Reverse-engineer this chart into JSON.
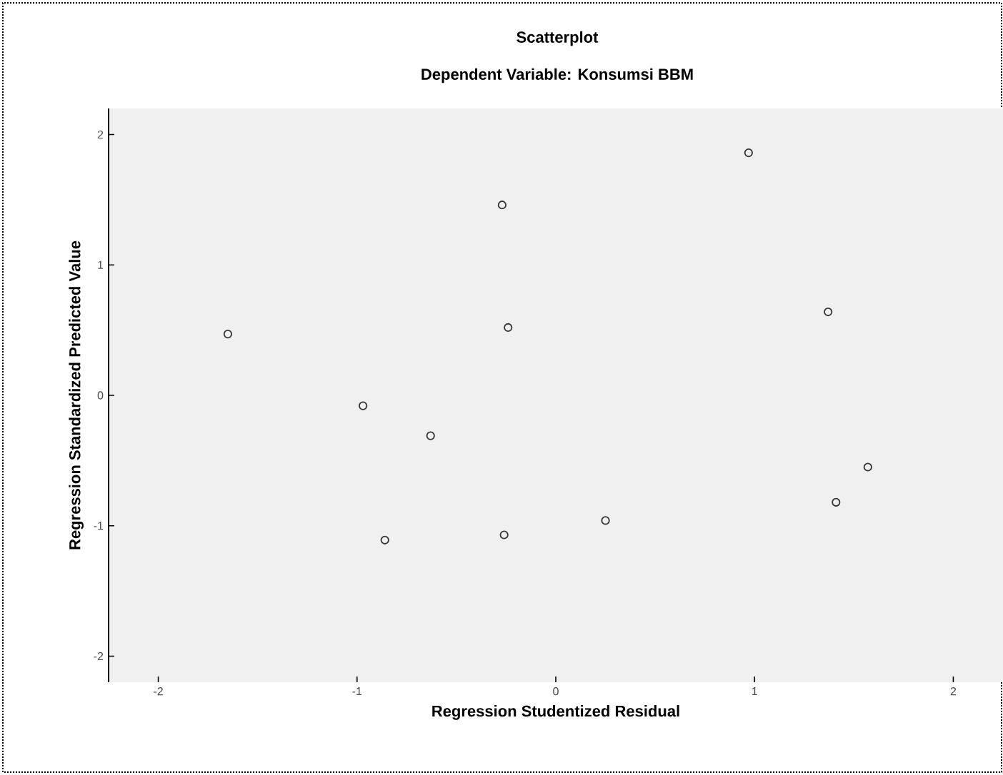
{
  "chart_data": {
    "type": "scatter",
    "title": "Scatterplot",
    "subtitle": "Dependent Variable: Konsumsi BBM",
    "xlabel": "Regression Studentized Residual",
    "ylabel": "Regression Standardized Predicted Value",
    "xlim": [
      -2.25,
      2.25
    ],
    "ylim": [
      -2.2,
      2.2
    ],
    "xticks": [
      -2,
      -1,
      0,
      1,
      2
    ],
    "yticks": [
      -2,
      -1,
      0,
      1,
      2
    ],
    "marker": "circle",
    "grid": false,
    "series": [
      {
        "color": "#333333",
        "x": [
          -1.65,
          -0.97,
          -0.63,
          -0.86,
          -0.27,
          -0.24,
          -0.26,
          0.25,
          0.97,
          1.37,
          1.41,
          1.57
        ],
        "values": [
          0.47,
          -0.08,
          -0.31,
          -1.11,
          1.46,
          0.52,
          -1.07,
          -0.96,
          1.86,
          0.64,
          -0.82,
          -0.55
        ]
      }
    ]
  }
}
